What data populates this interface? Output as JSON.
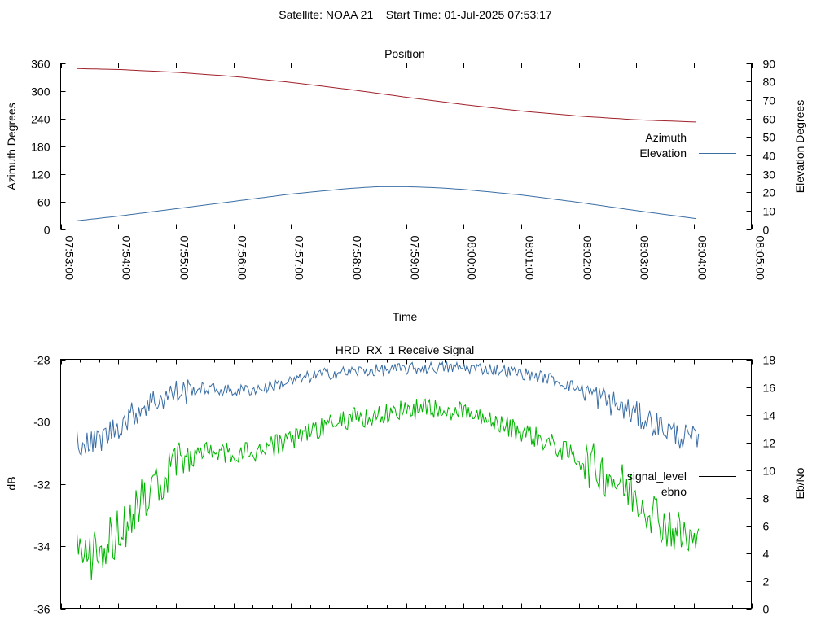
{
  "header": {
    "satellite": "Satellite: NOAA 21",
    "start_time": "Start Time: 01-Jul-2025 07:53:17"
  },
  "colors": {
    "azimuth": "#a0202a",
    "elevation": "#3a6ea5",
    "signal_level": "#00b400",
    "ebno": "#3a6ea5",
    "legend_signal_level": "#000000",
    "axis": "#000000"
  },
  "chart_data": [
    {
      "type": "line",
      "title": "Position",
      "xlabel": "Time",
      "ylabel": "Azimuth Degrees",
      "y2label": "Elevation Degrees",
      "x_ticks": [
        "07:53:00",
        "07:54:00",
        "07:55:00",
        "07:56:00",
        "07:57:00",
        "07:58:00",
        "07:59:00",
        "08:00:00",
        "08:01:00",
        "08:02:00",
        "08:03:00",
        "08:04:00",
        "08:05:00"
      ],
      "xlim": [
        "07:53:00",
        "08:05:00"
      ],
      "ylim": [
        0,
        360
      ],
      "y_ticks": [
        0,
        60,
        120,
        180,
        240,
        300,
        360
      ],
      "y2lim": [
        0,
        90
      ],
      "y2_ticks": [
        0,
        10,
        20,
        30,
        40,
        50,
        60,
        70,
        80,
        90
      ],
      "grid": false,
      "legend": "right",
      "series": [
        {
          "name": "Azimuth",
          "axis": "left",
          "x": [
            "07:53:17",
            "07:54:00",
            "07:55:00",
            "07:56:00",
            "07:57:00",
            "07:58:00",
            "07:59:00",
            "08:00:00",
            "08:01:00",
            "08:02:00",
            "08:03:00",
            "08:04:05"
          ],
          "values": [
            348,
            346,
            340,
            331,
            318,
            303,
            286,
            270,
            256,
            245,
            237,
            232
          ]
        },
        {
          "name": "Elevation",
          "axis": "right",
          "x": [
            "07:53:17",
            "07:54:00",
            "07:55:00",
            "07:56:00",
            "07:57:00",
            "07:58:00",
            "07:58:30",
            "07:59:00",
            "07:59:30",
            "08:00:00",
            "08:01:00",
            "08:02:00",
            "08:03:00",
            "08:04:05"
          ],
          "values": [
            4.5,
            7,
            11,
            15,
            19,
            22,
            23,
            23,
            22.5,
            21.5,
            18.5,
            14.5,
            10,
            5.5
          ]
        }
      ]
    },
    {
      "type": "line",
      "title": "HRD_RX_1 Receive Signal",
      "xlabel": "",
      "ylabel": "dB",
      "y2label": "Eb/No",
      "xlim": [
        "07:53:00",
        "08:05:00"
      ],
      "ylim": [
        -36,
        -28
      ],
      "y_ticks": [
        -36,
        -34,
        -32,
        -30,
        -28
      ],
      "y2lim": [
        0,
        18
      ],
      "y2_ticks": [
        0,
        2,
        4,
        6,
        8,
        10,
        12,
        14,
        16,
        18
      ],
      "x_minor_tick_seconds": 20,
      "grid": false,
      "legend": "right",
      "series": [
        {
          "name": "signal_level",
          "axis": "left",
          "x": [
            "07:53:17",
            "07:53:30",
            "07:53:45",
            "07:54:00",
            "07:54:15",
            "07:54:30",
            "07:54:45",
            "07:55:00",
            "07:55:30",
            "07:56:00",
            "07:56:30",
            "07:57:00",
            "07:57:30",
            "07:58:00",
            "07:58:30",
            "07:59:00",
            "07:59:30",
            "08:00:00",
            "08:00:30",
            "08:01:00",
            "08:01:30",
            "08:02:00",
            "08:02:30",
            "08:03:00",
            "08:03:15",
            "08:03:30",
            "08:03:45",
            "08:04:00",
            "08:04:05"
          ],
          "values": [
            -34.2,
            -34.4,
            -34.0,
            -33.6,
            -33.0,
            -32.4,
            -31.8,
            -31.3,
            -31.0,
            -31.0,
            -30.9,
            -30.6,
            -30.2,
            -29.9,
            -29.8,
            -29.6,
            -29.6,
            -29.7,
            -30.0,
            -30.3,
            -30.7,
            -31.2,
            -31.7,
            -32.4,
            -32.8,
            -33.3,
            -33.6,
            -33.9,
            -34.0
          ]
        },
        {
          "name": "ebno",
          "axis": "right",
          "x": [
            "07:53:17",
            "07:53:30",
            "07:53:45",
            "07:54:00",
            "07:54:30",
            "07:55:00",
            "07:55:30",
            "07:56:00",
            "07:56:30",
            "07:57:00",
            "07:57:30",
            "07:58:00",
            "07:58:30",
            "07:59:00",
            "07:59:30",
            "08:00:00",
            "08:00:30",
            "08:01:00",
            "08:01:30",
            "08:02:00",
            "08:02:30",
            "08:03:00",
            "08:03:15",
            "08:03:30",
            "08:03:45",
            "08:04:00",
            "08:04:05"
          ],
          "values": [
            12.2,
            11.8,
            12.4,
            13.2,
            14.8,
            15.6,
            15.9,
            15.7,
            15.9,
            16.4,
            16.9,
            17.1,
            17.2,
            17.3,
            17.4,
            17.4,
            17.3,
            17.0,
            16.6,
            15.9,
            15.0,
            14.0,
            13.5,
            13.0,
            12.5,
            12.2,
            12.0
          ]
        }
      ]
    }
  ]
}
